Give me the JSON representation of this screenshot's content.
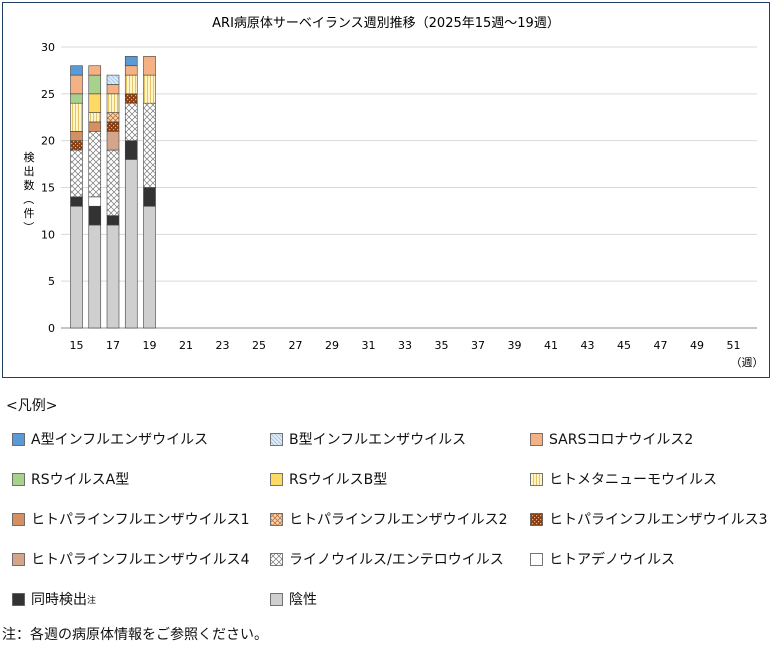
{
  "chart_data": {
    "type": "bar",
    "stacked": true,
    "title": "ARI病原体サーベイランス週別推移（2025年15週～19週）",
    "ylabel": "検出数（件）",
    "xunit": "（週）",
    "ylim": [
      0,
      30
    ],
    "yticks": [
      0,
      5,
      10,
      15,
      20,
      25,
      30
    ],
    "x_ticks": [
      "15",
      "17",
      "19",
      "21",
      "23",
      "25",
      "27",
      "29",
      "31",
      "33",
      "35",
      "37",
      "39",
      "41",
      "43",
      "45",
      "47",
      "49",
      "51"
    ],
    "weeks": [
      "15",
      "16",
      "17",
      "18",
      "19"
    ],
    "grid": true,
    "series": [
      {
        "name": "陰性",
        "key": "neg",
        "values": [
          13,
          11,
          11,
          18,
          13
        ]
      },
      {
        "name": "同時検出",
        "key": "coinf",
        "values": [
          1,
          2,
          1,
          2,
          2
        ]
      },
      {
        "name": "ヒトアデノウイルス",
        "key": "adeno",
        "values": [
          0,
          1,
          0,
          0,
          0
        ]
      },
      {
        "name": "ライノウイルス/エンテロウイルス",
        "key": "rhino",
        "values": [
          5,
          7,
          7,
          4,
          9
        ]
      },
      {
        "name": "ヒトパラインフルエンザウイルス4",
        "key": "hpiv4",
        "values": [
          0,
          0,
          2,
          0,
          0
        ]
      },
      {
        "name": "ヒトパラインフルエンザウイルス3",
        "key": "hpiv3",
        "values": [
          1,
          0,
          1,
          1,
          0
        ]
      },
      {
        "name": "ヒトパラインフルエンザウイルス2",
        "key": "hpiv2",
        "values": [
          0,
          0,
          1,
          0,
          0
        ]
      },
      {
        "name": "ヒトパラインフルエンザウイルス1",
        "key": "hpiv1",
        "values": [
          1,
          1,
          0,
          0,
          0
        ]
      },
      {
        "name": "ヒトメタニューモウイルス",
        "key": "hmpv",
        "values": [
          3,
          1,
          2,
          2,
          3
        ]
      },
      {
        "name": "RSウイルスB型",
        "key": "rsvb",
        "values": [
          0,
          2,
          0,
          0,
          0
        ]
      },
      {
        "name": "RSウイルスA型",
        "key": "rsva",
        "values": [
          1,
          2,
          0,
          0,
          0
        ]
      },
      {
        "name": "SARSコロナウイルス2",
        "key": "sars",
        "values": [
          2,
          1,
          1,
          1,
          2
        ]
      },
      {
        "name": "B型インフルエンザウイルス",
        "key": "flub",
        "values": [
          0,
          0,
          1,
          0,
          0
        ]
      },
      {
        "name": "A型インフルエンザウイルス",
        "key": "flua",
        "values": [
          1,
          0,
          0,
          1,
          0
        ]
      }
    ],
    "colors": {
      "neg": "#cfcfcf",
      "coinf": "#333333",
      "adeno": "#ffffff",
      "rhino": "#ffffff",
      "hpiv4": "#d4a58a",
      "hpiv3": "#8a3d10",
      "hpiv2": "#f6d9b4",
      "hpiv1": "#d49060",
      "hmpv": "#fff5c8",
      "rsvb": "#ffd966",
      "rsva": "#a9d18e",
      "sars": "#f4b183",
      "flub": "#deebf7",
      "flua": "#5b9bd5"
    }
  },
  "legend": {
    "caption": "<凡例>",
    "items": [
      {
        "label": "A型インフルエンザウイルス",
        "key": "flua"
      },
      {
        "label": "B型インフルエンザウイルス",
        "key": "flub"
      },
      {
        "label": "SARSコロナウイルス2",
        "key": "sars"
      },
      {
        "label": "RSウイルスA型",
        "key": "rsva"
      },
      {
        "label": "RSウイルスB型",
        "key": "rsvb"
      },
      {
        "label": "ヒトメタニューモウイルス",
        "key": "hmpv"
      },
      {
        "label": "ヒトパラインフルエンザウイルス1",
        "key": "hpiv1"
      },
      {
        "label": "ヒトパラインフルエンザウイルス2",
        "key": "hpiv2"
      },
      {
        "label": "ヒトパラインフルエンザウイルス3",
        "key": "hpiv3"
      },
      {
        "label": "ヒトパラインフルエンザウイルス4",
        "key": "hpiv4"
      },
      {
        "label": "ライノウイルス/エンテロウイルス",
        "key": "rhino"
      },
      {
        "label": "ヒトアデノウイルス",
        "key": "adeno"
      },
      {
        "label": "同時検出",
        "key": "coinf",
        "sup": "注"
      },
      {
        "label": "陰性",
        "key": "neg"
      }
    ]
  },
  "footnote": "注：各週の病原体情報をご参照ください。"
}
